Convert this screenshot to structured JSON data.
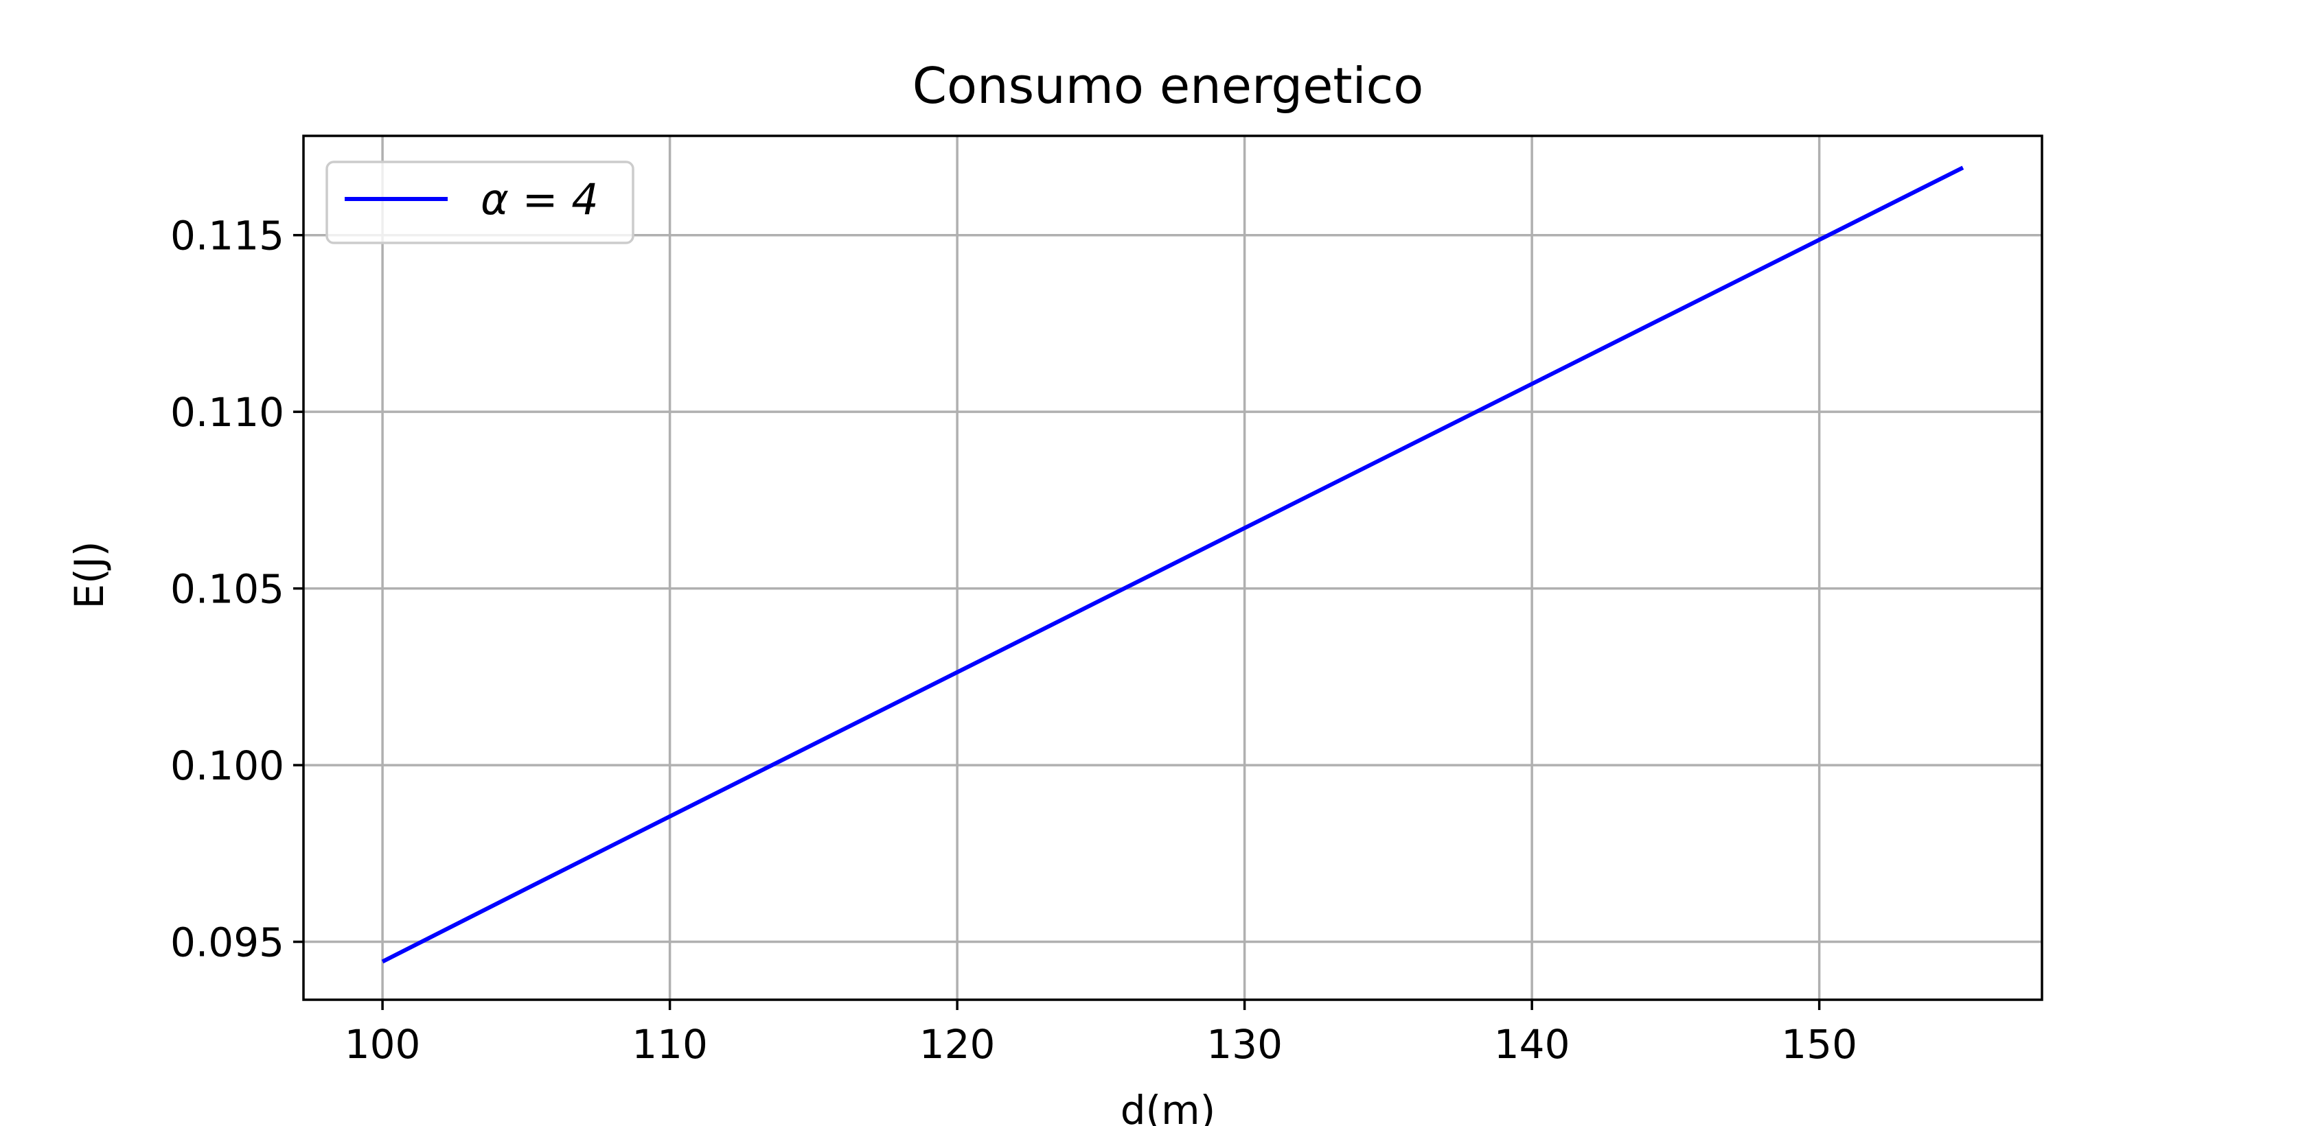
{
  "chart_data": {
    "type": "line",
    "title": "Consumo energetico",
    "xlabel": "d(m)",
    "ylabel": "E(J)",
    "xlim": [
      97.25,
      157.75
    ],
    "ylim": [
      0.09336,
      0.11781
    ],
    "xticks": [
      100,
      110,
      120,
      130,
      140,
      150
    ],
    "xtick_labels": [
      "100",
      "110",
      "120",
      "130",
      "140",
      "150"
    ],
    "yticks": [
      0.095,
      0.1,
      0.105,
      0.11,
      0.115
    ],
    "ytick_labels": [
      "0.095",
      "0.100",
      "0.105",
      "0.110",
      "0.115"
    ],
    "grid": true,
    "legend_position": "top-left",
    "series": [
      {
        "name": "α = 4",
        "color": "#0000ff",
        "x": [
          100,
          105,
          110,
          115,
          120,
          125,
          130,
          135,
          140,
          145,
          150,
          155
        ],
        "y": [
          0.09444,
          0.0965,
          0.09855,
          0.10059,
          0.10263,
          0.10467,
          0.10671,
          0.10875,
          0.11079,
          0.11283,
          0.11487,
          0.11691
        ]
      }
    ]
  }
}
